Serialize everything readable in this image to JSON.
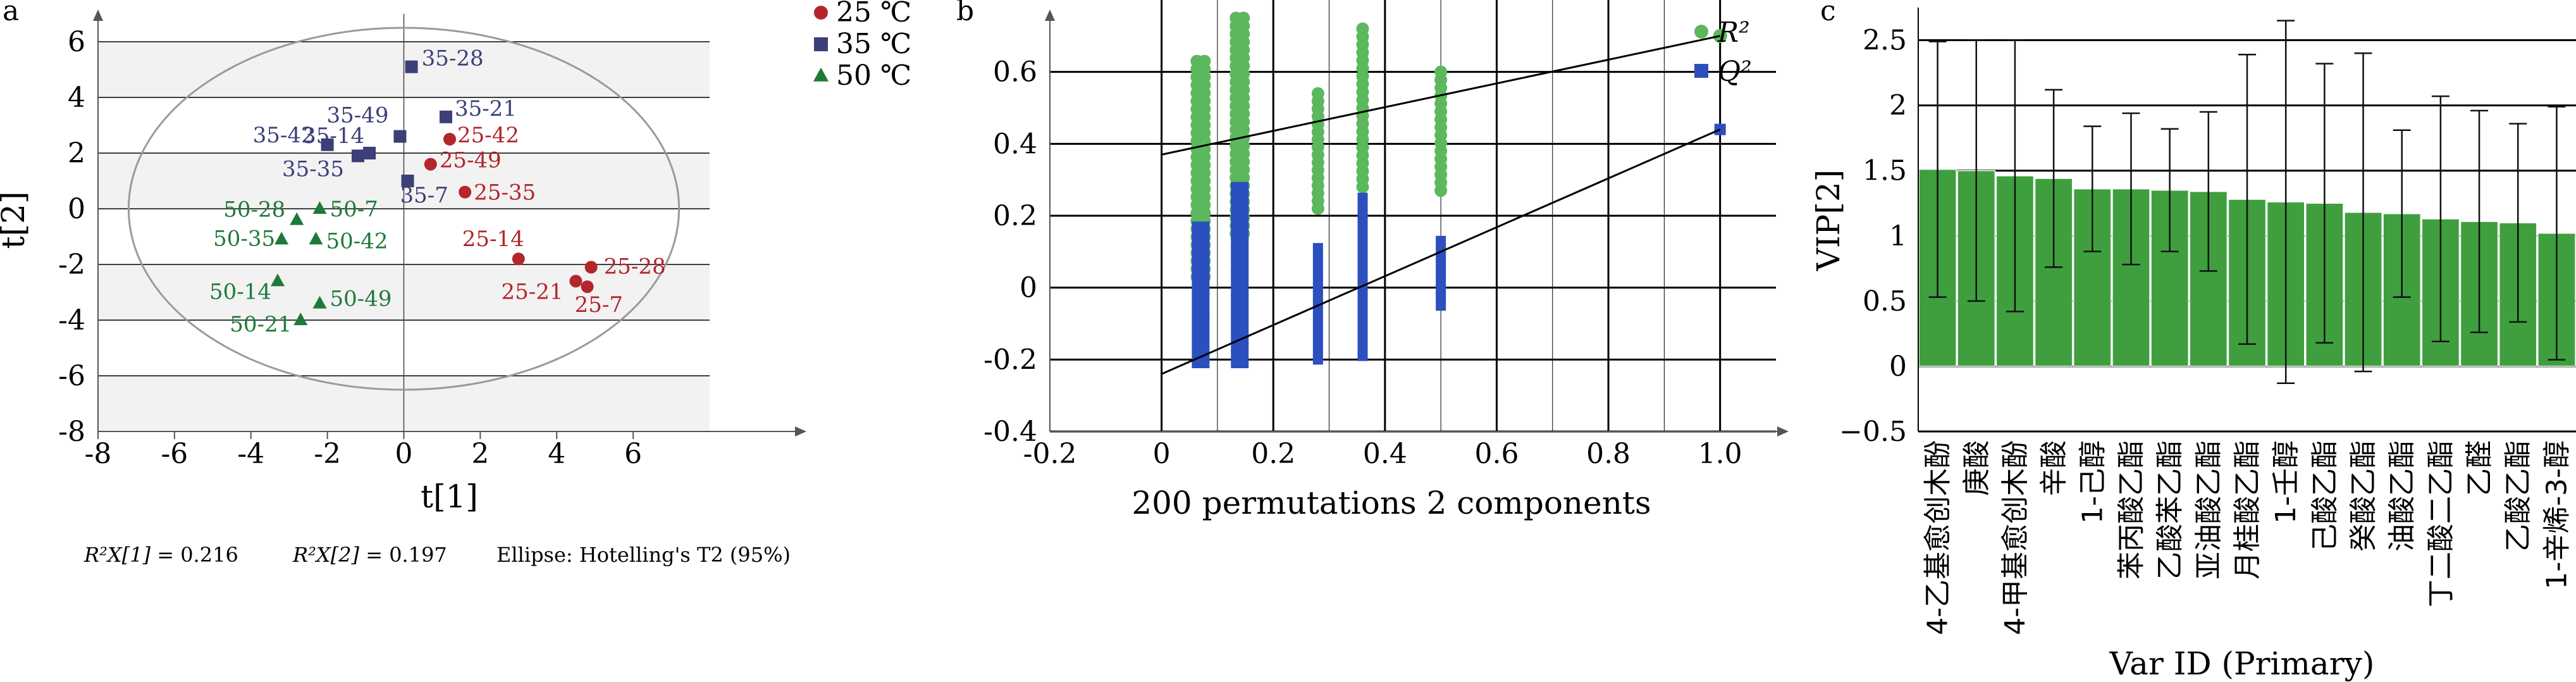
{
  "chart_data": [
    {
      "type": "scatter",
      "panel": "a",
      "xlabel": "t[1]",
      "ylabel": "t[2]",
      "xlim": [
        -8,
        8
      ],
      "ylim": [
        -8,
        7
      ],
      "x_ticks": [
        "-8",
        "-6",
        "-4",
        "-2",
        "0",
        "2",
        "4",
        "6"
      ],
      "y_ticks": [
        "6",
        "4",
        "2",
        "0",
        "-2",
        "-4",
        "-6",
        "-8"
      ],
      "series": [
        {
          "name": "25 ℃",
          "color": "#b2262c",
          "marker": "circle",
          "points": [
            {
              "label": "25-28",
              "x": 4.9,
              "y": -2.1
            },
            {
              "label": "25-42",
              "x": 1.2,
              "y": 2.5
            },
            {
              "label": "25-49",
              "x": 0.7,
              "y": 1.6
            },
            {
              "label": "25-35",
              "x": 1.6,
              "y": 0.6
            },
            {
              "label": "25-14",
              "x": 3.0,
              "y": -1.8
            },
            {
              "label": "25-21",
              "x": 4.5,
              "y": -2.6
            },
            {
              "label": "25-7",
              "x": 4.8,
              "y": -2.8
            }
          ]
        },
        {
          "name": "35 ℃",
          "color": "#3d3f78",
          "marker": "square",
          "points": [
            {
              "label": "35-28",
              "x": 0.2,
              "y": 5.1
            },
            {
              "label": "35-21",
              "x": 1.1,
              "y": 3.3
            },
            {
              "label": "35-49",
              "x": -0.1,
              "y": 2.6
            },
            {
              "label": "35-42",
              "x": -2.0,
              "y": 2.3
            },
            {
              "label": "35-14",
              "x": -0.9,
              "y": 2.0
            },
            {
              "label": "35-35",
              "x": -1.2,
              "y": 1.9
            },
            {
              "label": "35-7",
              "x": 0.1,
              "y": 1.0
            }
          ]
        },
        {
          "name": "50 ℃",
          "color": "#1f7a3a",
          "marker": "triangle",
          "points": [
            {
              "label": "50-28",
              "x": -2.8,
              "y": -0.4
            },
            {
              "label": "50-7",
              "x": -2.2,
              "y": 0.0
            },
            {
              "label": "50-42",
              "x": -2.3,
              "y": -1.1
            },
            {
              "label": "50-35",
              "x": -3.2,
              "y": -1.1
            },
            {
              "label": "50-14",
              "x": -3.3,
              "y": -2.6
            },
            {
              "label": "50-49",
              "x": -2.2,
              "y": -3.4
            },
            {
              "label": "50-21",
              "x": -2.7,
              "y": -4.0
            }
          ]
        }
      ],
      "ellipse": {
        "cx": 0,
        "cy": 0,
        "rx": 7.2,
        "ry": 6.5
      },
      "notes": [
        {
          "math": "R²X[1]",
          "text": " = 0.216"
        },
        {
          "math": "R²X[2]",
          "text": " = 0.197"
        },
        {
          "math": "",
          "text": "Ellipse: Hotelling's T2 (95%)"
        }
      ]
    },
    {
      "type": "scatter",
      "panel": "b",
      "xlabel": "200 permutations 2 components",
      "xlim": [
        -0.2,
        1.1
      ],
      "ylim": [
        -0.4,
        0.8
      ],
      "x_ticks": [
        "-0.2",
        "0",
        "0.2",
        "0.4",
        "0.6",
        "0.8",
        "1.0"
      ],
      "y_ticks": [
        "0.6",
        "0.4",
        "0.2",
        "0",
        "-0.2",
        "-0.4"
      ],
      "series": [
        {
          "name": "R²",
          "color": "#5cb85c",
          "marker": "circle",
          "x_columns": [
            0.07,
            0.14,
            0.28,
            0.36,
            0.5
          ],
          "y_ranges": [
            [
              0.03,
              0.63
            ],
            [
              0.15,
              0.75
            ],
            [
              0.22,
              0.54
            ],
            [
              0.28,
              0.72
            ],
            [
              0.27,
              0.6
            ]
          ],
          "original": {
            "x": 1.0,
            "y": 0.7
          },
          "regression": {
            "intercept": 0.37,
            "end": [
              1.0,
              0.7
            ]
          }
        },
        {
          "name": "Q²",
          "color": "#2b4fbf",
          "marker": "square",
          "x_columns": [
            0.07,
            0.14,
            0.28,
            0.36,
            0.5
          ],
          "y_ranges": [
            [
              -0.21,
              0.17
            ],
            [
              -0.21,
              0.28
            ],
            [
              -0.2,
              0.11
            ],
            [
              -0.19,
              0.25
            ],
            [
              -0.05,
              0.13
            ]
          ],
          "original": {
            "x": 1.0,
            "y": 0.44
          },
          "regression": {
            "intercept": -0.24,
            "end": [
              1.0,
              0.44
            ]
          }
        }
      ]
    },
    {
      "type": "bar",
      "panel": "c",
      "xlabel": "Var ID (Primary)",
      "ylabel": "VIP[2]",
      "ylim": [
        -0.5,
        2.75
      ],
      "y_ticks": [
        "2.5",
        "2",
        "1.5",
        "1",
        "0.5",
        "0",
        "−0.5"
      ],
      "bar_color": "#3f9f3f",
      "categories": [
        "4-乙基愈创木酚",
        "庚酸",
        "4-甲基愈创木酚",
        "辛酸",
        "1-己醇",
        "苯丙酸乙酯",
        "乙酸苯乙酯",
        "亚油酸乙酯",
        "月桂酸乙酯",
        "1-壬醇",
        "己酸乙酯",
        "癸酸乙酯",
        "油酸乙酯",
        "丁二酸二乙酯",
        "乙醛",
        "乙酸乙酯",
        "1-辛烯-3-醇"
      ],
      "values": [
        1.51,
        1.5,
        1.46,
        1.44,
        1.36,
        1.36,
        1.35,
        1.34,
        1.28,
        1.26,
        1.25,
        1.18,
        1.17,
        1.13,
        1.11,
        1.1,
        1.02
      ],
      "error": [
        0.98,
        1.0,
        1.04,
        0.68,
        0.48,
        0.58,
        0.47,
        0.61,
        1.11,
        1.39,
        1.07,
        1.22,
        0.64,
        0.94,
        0.85,
        0.76,
        0.97
      ]
    }
  ]
}
